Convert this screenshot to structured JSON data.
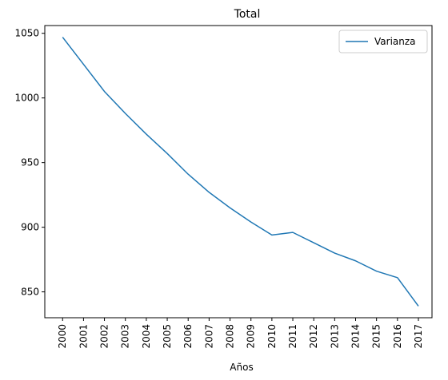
{
  "chart_data": {
    "type": "line",
    "title": "Total",
    "xlabel": "Años",
    "ylabel": "",
    "x": [
      "2000",
      "2001",
      "2002",
      "2003",
      "2004",
      "2005",
      "2006",
      "2007",
      "2008",
      "2009",
      "2010",
      "2011",
      "2012",
      "2013",
      "2014",
      "2015",
      "2016",
      "2017"
    ],
    "series": [
      {
        "name": "Varianza",
        "color": "#1f77b4",
        "values": [
          1047,
          1026,
          1005,
          988,
          972,
          957,
          941,
          927,
          915,
          904,
          894,
          896,
          888,
          880,
          874,
          866,
          861,
          839
        ]
      }
    ],
    "ylim": [
      830,
      1056
    ],
    "yticks": [
      850,
      900,
      950,
      1000,
      1050
    ],
    "grid": false,
    "legend": "top-right"
  }
}
